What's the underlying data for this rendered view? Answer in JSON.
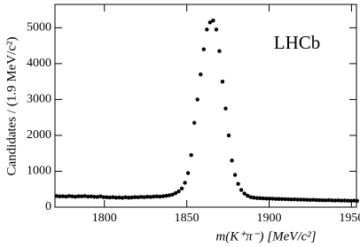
{
  "chart_data": {
    "type": "scatter",
    "annotation": "LHCb",
    "xlabel": "m(K⁺π⁻) [MeV/c²]",
    "ylabel": "Candidates / (1.9 MeV/c²)",
    "color": "#000000",
    "x": [
      1771.0,
      1772.9,
      1774.8,
      1776.7,
      1778.6,
      1780.5,
      1782.4,
      1784.3,
      1786.2,
      1788.1,
      1790.0,
      1791.9,
      1793.8,
      1795.7,
      1797.6,
      1799.5,
      1801.4,
      1803.3,
      1805.2,
      1807.1,
      1809.0,
      1810.9,
      1812.8,
      1814.7,
      1816.6,
      1818.5,
      1820.4,
      1822.3,
      1824.2,
      1826.1,
      1828.0,
      1829.9,
      1831.8,
      1833.7,
      1835.6,
      1837.5,
      1839.4,
      1841.3,
      1843.2,
      1845.1,
      1847.0,
      1848.9,
      1850.8,
      1852.7,
      1854.6,
      1856.5,
      1858.4,
      1860.3,
      1862.2,
      1864.1,
      1866.0,
      1867.9,
      1869.8,
      1871.7,
      1873.6,
      1875.5,
      1877.4,
      1879.3,
      1881.2,
      1883.1,
      1885.0,
      1886.9,
      1888.8,
      1890.7,
      1892.6,
      1894.5,
      1896.4,
      1898.3,
      1900.2,
      1902.1,
      1904.0,
      1905.9,
      1907.8,
      1909.7,
      1911.6,
      1913.5,
      1915.4,
      1917.3,
      1919.2,
      1921.1,
      1923.0,
      1924.9,
      1926.8,
      1928.7,
      1930.6,
      1932.5,
      1934.4,
      1936.3,
      1938.2,
      1940.1,
      1942.0,
      1943.9,
      1945.8,
      1947.7,
      1949.6,
      1951.5,
      1953.4
    ],
    "values": [
      310,
      300,
      305,
      295,
      310,
      300,
      290,
      305,
      300,
      310,
      295,
      300,
      290,
      285,
      300,
      280,
      275,
      270,
      280,
      265,
      270,
      260,
      275,
      265,
      270,
      280,
      275,
      285,
      280,
      290,
      285,
      295,
      300,
      295,
      305,
      315,
      330,
      350,
      390,
      440,
      520,
      680,
      950,
      1450,
      2350,
      3000,
      3700,
      4400,
      4950,
      5150,
      5200,
      4950,
      4350,
      3500,
      2750,
      2000,
      1300,
      900,
      650,
      480,
      380,
      320,
      280,
      265,
      255,
      250,
      245,
      240,
      238,
      235,
      230,
      228,
      225,
      222,
      220,
      215,
      218,
      212,
      210,
      208,
      205,
      200,
      205,
      198,
      195,
      192,
      190,
      195,
      188,
      185,
      190,
      182,
      185,
      180,
      178,
      182,
      175
    ],
    "xlim": [
      1770,
      1953
    ],
    "ylim": [
      0,
      5650
    ],
    "xticks": [
      1800,
      1850,
      1900,
      1950
    ],
    "yticks": [
      0,
      1000,
      2000,
      3000,
      4000,
      5000
    ]
  }
}
